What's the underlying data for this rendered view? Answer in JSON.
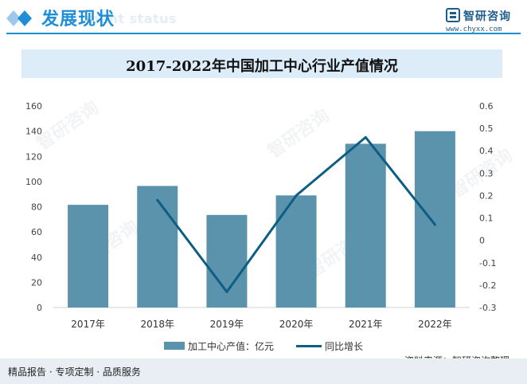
{
  "header": {
    "section_title": "发展现状",
    "section_subtitle": "ment status",
    "brand_name": "智研咨询",
    "brand_url": "www.chyxx.com"
  },
  "watermark": "智研咨询",
  "colors": {
    "accent": "#1e8fd6",
    "bar": "#5b93ad",
    "line": "#0e5e84"
  },
  "chart_data": {
    "type": "bar",
    "title": "2017-2022年中国加工中心行业产值情况",
    "categories": [
      "2017年",
      "2018年",
      "2019年",
      "2020年",
      "2021年",
      "2022年"
    ],
    "series": [
      {
        "name": "加工中心产值：亿元",
        "type": "bar",
        "axis": "left",
        "values": [
          81.5,
          96.5,
          73.5,
          89,
          130,
          140
        ]
      },
      {
        "name": "同比增长",
        "type": "line",
        "axis": "right",
        "values": [
          null,
          0.18,
          -0.23,
          0.2,
          0.46,
          0.07
        ]
      }
    ],
    "ylim_left": [
      0,
      160
    ],
    "yticks_left": [
      "0",
      "20",
      "40",
      "60",
      "80",
      "100",
      "120",
      "140",
      "160"
    ],
    "ylim_right": [
      -0.3,
      0.6
    ],
    "yticks_right": [
      "-0.3",
      "-0.2",
      "-0.1",
      "0",
      "0.1",
      "0.2",
      "0.3",
      "0.4",
      "0.5",
      "0.6"
    ],
    "grid": false,
    "legend_position": "bottom"
  },
  "legend": {
    "bar_label": "加工中心产值：亿元",
    "line_label": "同比增长"
  },
  "source": "资料来源：智研咨询整理",
  "footer": "精品报告 · 专项定制 · 品质服务"
}
